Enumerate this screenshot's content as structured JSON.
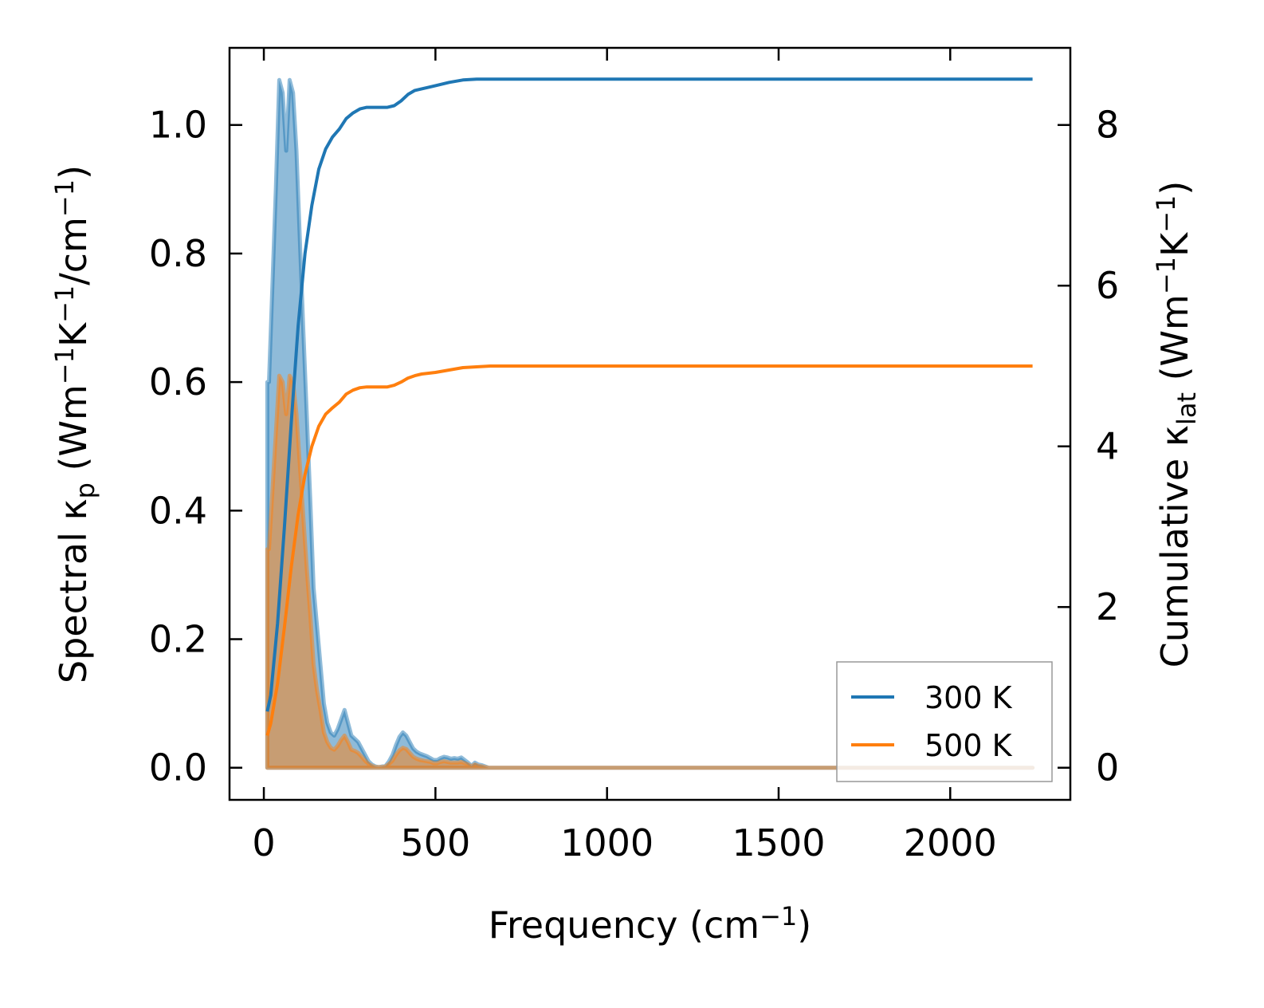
{
  "chart_data": {
    "type": "line",
    "xlabel": "Frequency (cm",
    "xlabel_sup": "−1",
    "xlabel_end": ")",
    "ylabel_left": {
      "prefix": "Spectral κ",
      "sub": "p",
      "mid": " (Wm",
      "sup1": "−1",
      "mid2": "K",
      "sup2": "−1",
      "mid3": "/cm",
      "sup3": "−1",
      "end": ")"
    },
    "ylabel_right": {
      "prefix": "Cumulative κ",
      "sub": "lat",
      "mid": " (Wm",
      "sup1": "−1",
      "mid2": "K",
      "sup2": "−1",
      "end": ")"
    },
    "xlim": [
      -100,
      2350
    ],
    "ylim_left": [
      -0.05,
      1.12
    ],
    "ylim_right": [
      -0.4,
      8.96
    ],
    "xticks": [
      0,
      500,
      1000,
      1500,
      2000
    ],
    "xtick_labels": [
      "0",
      "500",
      "1000",
      "1500",
      "2000"
    ],
    "yticks_left": [
      0.0,
      0.2,
      0.4,
      0.6,
      0.8,
      1.0
    ],
    "ytick_labels_left": [
      "0.0",
      "0.2",
      "0.4",
      "0.6",
      "0.8",
      "1.0"
    ],
    "yticks_right": [
      0,
      2,
      4,
      6,
      8
    ],
    "ytick_labels_right": [
      "0",
      "2",
      "4",
      "6",
      "8"
    ],
    "legend_position": "bottom-right",
    "series": [
      {
        "name": "300 K",
        "color": "#1f77b4",
        "spectral": {
          "x": [
            10,
            15,
            25,
            35,
            45,
            55,
            65,
            75,
            85,
            95,
            105,
            115,
            125,
            135,
            145,
            155,
            165,
            175,
            185,
            195,
            205,
            215,
            225,
            235,
            245,
            255,
            265,
            275,
            285,
            295,
            305,
            315,
            325,
            335,
            345,
            355,
            365,
            375,
            385,
            395,
            405,
            415,
            425,
            435,
            445,
            455,
            465,
            475,
            485,
            495,
            505,
            515,
            525,
            535,
            545,
            555,
            565,
            575,
            585,
            595,
            605,
            615,
            625,
            635,
            645,
            655,
            700,
            1000,
            1500,
            2000,
            2240
          ],
          "y": [
            0.6,
            0.6,
            0.75,
            0.9,
            1.07,
            1.05,
            0.96,
            1.07,
            1.05,
            0.96,
            0.82,
            0.68,
            0.55,
            0.42,
            0.28,
            0.22,
            0.16,
            0.1,
            0.07,
            0.055,
            0.05,
            0.06,
            0.075,
            0.09,
            0.07,
            0.05,
            0.045,
            0.04,
            0.03,
            0.02,
            0.01,
            0.005,
            0.002,
            0.001,
            0.002,
            0.003,
            0.01,
            0.02,
            0.035,
            0.048,
            0.055,
            0.05,
            0.04,
            0.03,
            0.025,
            0.022,
            0.02,
            0.018,
            0.015,
            0.012,
            0.012,
            0.015,
            0.017,
            0.016,
            0.014,
            0.015,
            0.014,
            0.016,
            0.012,
            0.008,
            0.003,
            0.008,
            0.005,
            0.004,
            0.002,
            0.0,
            0.0,
            0.0,
            0.0,
            0.0,
            0.0
          ]
        },
        "cumulative": {
          "x": [
            10,
            20,
            40,
            60,
            80,
            100,
            120,
            140,
            160,
            180,
            200,
            220,
            240,
            260,
            280,
            300,
            330,
            360,
            380,
            400,
            420,
            440,
            460,
            480,
            500,
            540,
            580,
            620,
            660,
            700,
            1000,
            1500,
            2000,
            2240
          ],
          "y": [
            0.7,
            0.9,
            1.8,
            3.0,
            4.3,
            5.5,
            6.4,
            7.0,
            7.45,
            7.7,
            7.85,
            7.95,
            8.08,
            8.15,
            8.2,
            8.22,
            8.22,
            8.22,
            8.24,
            8.3,
            8.38,
            8.43,
            8.45,
            8.47,
            8.49,
            8.53,
            8.56,
            8.57,
            8.57,
            8.57,
            8.57,
            8.57,
            8.57,
            8.57
          ]
        }
      },
      {
        "name": "500 K",
        "color": "#ff7f0e",
        "spectral": {
          "x": [
            10,
            15,
            25,
            35,
            45,
            55,
            65,
            75,
            85,
            95,
            105,
            115,
            125,
            135,
            145,
            155,
            165,
            175,
            185,
            195,
            205,
            215,
            225,
            235,
            245,
            255,
            265,
            275,
            285,
            295,
            305,
            315,
            325,
            335,
            345,
            355,
            365,
            375,
            385,
            395,
            405,
            415,
            425,
            435,
            445,
            455,
            465,
            475,
            485,
            495,
            505,
            515,
            525,
            535,
            545,
            555,
            565,
            575,
            585,
            595,
            605,
            615,
            625,
            635,
            645,
            655,
            700,
            1000,
            1500,
            2000,
            2240
          ],
          "y": [
            0.34,
            0.34,
            0.43,
            0.52,
            0.61,
            0.6,
            0.55,
            0.61,
            0.6,
            0.55,
            0.47,
            0.39,
            0.31,
            0.24,
            0.16,
            0.12,
            0.09,
            0.055,
            0.04,
            0.031,
            0.028,
            0.034,
            0.043,
            0.05,
            0.04,
            0.028,
            0.026,
            0.023,
            0.017,
            0.011,
            0.006,
            0.003,
            0.001,
            0.001,
            0.001,
            0.002,
            0.006,
            0.011,
            0.02,
            0.027,
            0.031,
            0.029,
            0.023,
            0.017,
            0.014,
            0.012,
            0.011,
            0.01,
            0.009,
            0.007,
            0.007,
            0.009,
            0.01,
            0.009,
            0.008,
            0.008,
            0.008,
            0.009,
            0.007,
            0.005,
            0.002,
            0.005,
            0.003,
            0.002,
            0.001,
            0.0,
            0.0,
            0.0,
            0.0,
            0.0,
            0.0
          ]
        },
        "cumulative": {
          "x": [
            10,
            20,
            40,
            60,
            80,
            100,
            120,
            140,
            160,
            180,
            200,
            220,
            240,
            260,
            280,
            300,
            330,
            360,
            380,
            400,
            420,
            440,
            460,
            480,
            500,
            540,
            580,
            620,
            660,
            700,
            1000,
            1500,
            2000,
            2240
          ],
          "y": [
            0.4,
            0.55,
            1.05,
            1.75,
            2.5,
            3.15,
            3.65,
            4.0,
            4.25,
            4.4,
            4.48,
            4.55,
            4.65,
            4.7,
            4.73,
            4.74,
            4.74,
            4.74,
            4.76,
            4.8,
            4.85,
            4.88,
            4.9,
            4.91,
            4.92,
            4.95,
            4.98,
            4.99,
            5.0,
            5.0,
            5.0,
            5.0,
            5.0,
            5.0
          ]
        }
      }
    ]
  }
}
